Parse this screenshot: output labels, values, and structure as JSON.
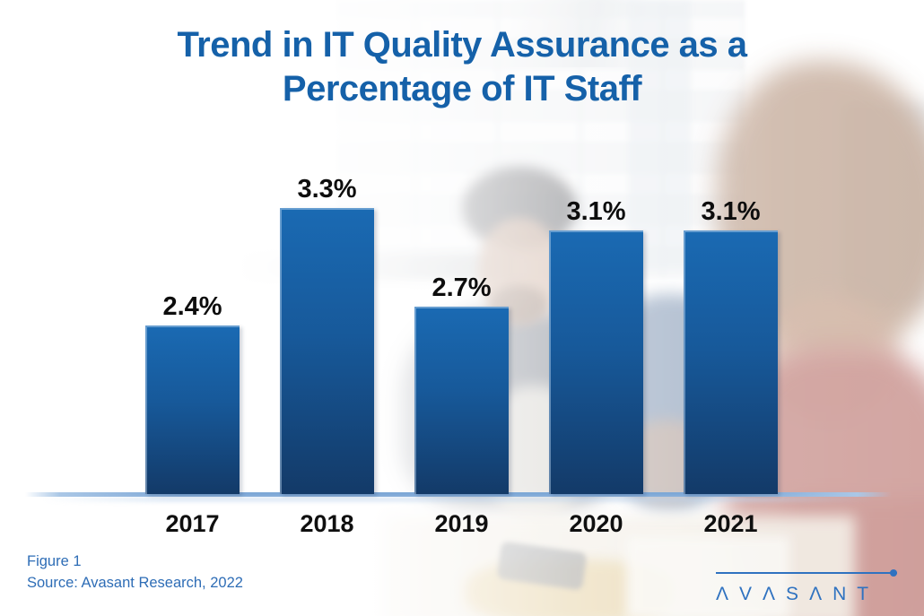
{
  "title": {
    "line1": "Trend in IT Quality Assurance as a",
    "line2": "Percentage of IT Staff"
  },
  "chart_data": {
    "type": "bar",
    "title": "Trend in IT Quality Assurance as a Percentage of IT Staff",
    "categories": [
      "2017",
      "2018",
      "2019",
      "2020",
      "2021"
    ],
    "values": [
      2.4,
      3.3,
      2.7,
      3.1,
      3.1
    ],
    "labels": [
      "2.4%",
      "3.3%",
      "2.7%",
      "3.1%",
      "3.1%"
    ],
    "xlabel": "",
    "ylabel": "",
    "ylim": [
      0,
      3.5
    ],
    "grid": false,
    "legend": null,
    "bar_color_top": "#1a6ab3",
    "bar_color_bottom": "#133a68",
    "value_label_color": "#0d0d0d",
    "axis_line_color": "#7da7d6",
    "title_color": "#1561a9"
  },
  "caption": {
    "figure": "Figure 1",
    "source": "Source: Avasant Research, 2022",
    "color": "#2e6db6"
  },
  "logo": {
    "name": "Avasant",
    "display_text": "ΛVΛSΛNT",
    "color": "#2f72c0"
  }
}
